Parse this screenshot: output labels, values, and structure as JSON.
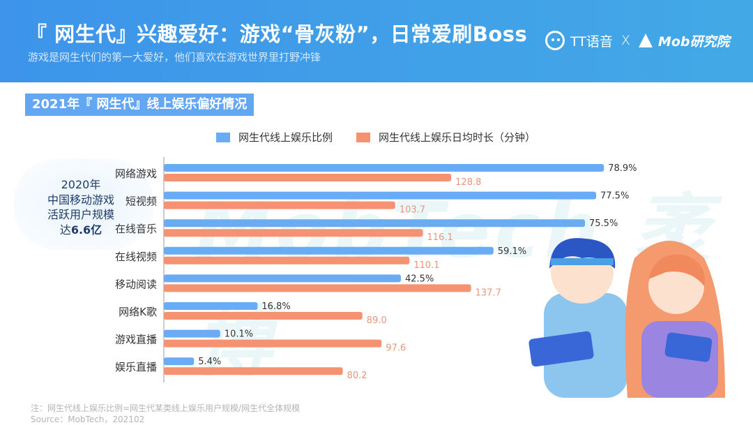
{
  "header": {
    "title": "『 网生代』兴趣爱好：游戏“骨灰粉”，日常爱刷Boss",
    "subtitle": "游戏是网生代们的第一大爱好，他们喜欢在游戏世界里打野冲锋",
    "logo_tt": "TT语音",
    "logo_sep": "X",
    "logo_mob": "Mob研究院"
  },
  "section_title": "2021年『 网生代』线上娱乐偏好情况",
  "watermark": "MobTech 袤博",
  "side_note": {
    "line1": "2020年",
    "line2": "中国移动游戏",
    "line3": "活跃用户规模",
    "line4_prefix": "达",
    "line4_value": "6.6亿"
  },
  "colors": {
    "blue": "#6aabf5",
    "orange": "#f59272",
    "header": "#3d94ea"
  },
  "chart_data": {
    "type": "bar",
    "orientation": "horizontal",
    "categories": [
      "网络游戏",
      "短视频",
      "在线音乐",
      "在线视频",
      "移动阅读",
      "网络K歌",
      "游戏直播",
      "娱乐直播"
    ],
    "series": [
      {
        "name": "网生代线上娱乐比例",
        "values": [
          78.9,
          77.5,
          75.5,
          59.1,
          42.5,
          16.8,
          10.1,
          5.4
        ],
        "labels": [
          "78.9%",
          "77.5%",
          "75.5%",
          "59.1%",
          "42.5%",
          "16.8%",
          "10.1%",
          "5.4%"
        ],
        "color": "#6aabf5"
      },
      {
        "name": "网生代线上娱乐日均时长（分钟）",
        "values": [
          128.8,
          103.7,
          116.1,
          110.1,
          137.7,
          89.0,
          97.6,
          80.2
        ],
        "labels": [
          "128.8",
          "103.7",
          "116.1",
          "110.1",
          "137.7",
          "89.0",
          "97.6",
          "80.2"
        ],
        "color": "#f59272"
      }
    ],
    "legend": "top",
    "grid": false
  },
  "footnote": {
    "note": "注：网生代线上娱乐比例=网生代某类线上娱乐用户规模/网生代全体规模",
    "source": "Source：MobTech，202102"
  }
}
